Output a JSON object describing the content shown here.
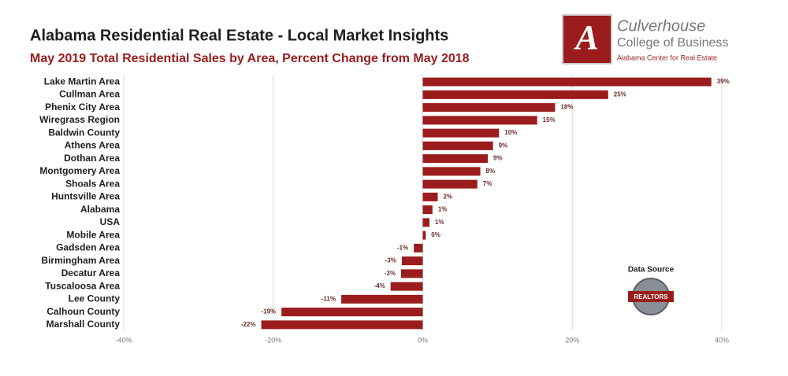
{
  "chart_data": {
    "type": "bar",
    "orientation": "horizontal",
    "title": "Alabama Residential Real Estate - Local Market Insights",
    "subtitle": "May 2019 Total Residential Sales by Area, Percent Change from May 2018",
    "categories": [
      "Lake Martin Area",
      "Cullman Area",
      "Phenix City Area",
      "Wiregrass Region",
      "Baldwin County",
      "Athens Area",
      "Dothan Area",
      "Montgomery Area",
      "Shoals Area",
      "Huntsville Area",
      "Alabama",
      "USA",
      "Mobile Area",
      "Gadsden Area",
      "Birmingham Area",
      "Decatur Area",
      "Tuscaloosa Area",
      "Lee County",
      "Calhoun County",
      "Marshall County"
    ],
    "values": [
      38.6,
      24.8,
      17.7,
      15.3,
      10.2,
      9.4,
      8.7,
      7.7,
      7.3,
      2.0,
      1.3,
      0.9,
      0.4,
      -1.2,
      -2.8,
      -2.9,
      -4.3,
      -10.9,
      -18.9,
      -21.6
    ],
    "value_labels": [
      "39%",
      "25%",
      "18%",
      "15%",
      "10%",
      "9%",
      "9%",
      "8%",
      "7%",
      "2%",
      "1%",
      "1%",
      "0%",
      "-1%",
      "-3%",
      "-3%",
      "-4%",
      "-11%",
      "-19%",
      "-22%"
    ],
    "color": "#9b1c1c",
    "xlim": [
      -40,
      40
    ],
    "xticks": [
      {
        "value": -40,
        "label": "-40%"
      },
      {
        "value": -20,
        "label": "-20%"
      },
      {
        "value": 0,
        "label": "0%"
      },
      {
        "value": 20,
        "label": "20%"
      },
      {
        "value": 40,
        "label": "40%"
      }
    ],
    "grid": true
  },
  "logo": {
    "mark": "A",
    "name": "Culverhouse",
    "school": "College of Business",
    "center": "Alabama Center for Real Estate"
  },
  "data_source": {
    "label": "Data Source",
    "badge": "REALTORS"
  }
}
